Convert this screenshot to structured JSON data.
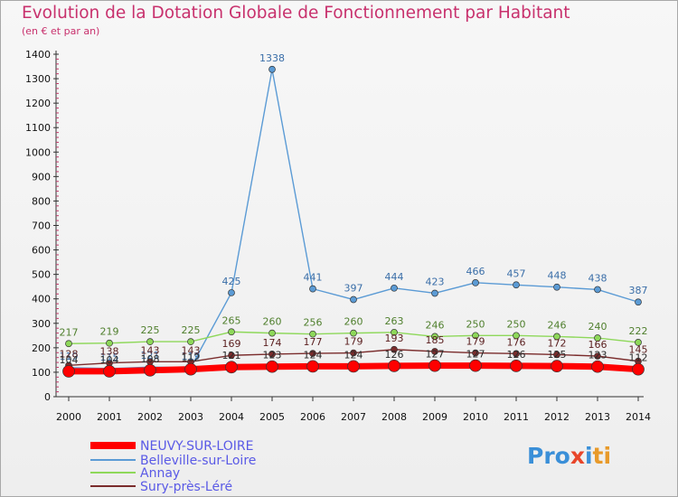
{
  "chart_data": {
    "type": "line",
    "title": "Evolution de la Dotation Globale de Fonctionnement par Habitant",
    "subtitle": "(en € et par an)",
    "ylim": [
      0,
      1400
    ],
    "yticks": [
      0,
      100,
      200,
      300,
      400,
      500,
      600,
      700,
      800,
      900,
      1000,
      1100,
      1200,
      1300,
      1400
    ],
    "x": [
      "2000",
      "2001",
      "2002",
      "2003",
      "2004",
      "2005",
      "2006",
      "2007",
      "2008",
      "2009",
      "2010",
      "2011",
      "2012",
      "2013",
      "2014"
    ],
    "grid": false,
    "legend_position": "bottom-left",
    "series": [
      {
        "name": "NEUVY-SUR-LOIRE",
        "color": "#ff0000",
        "values": [
          104,
          104,
          108,
          112,
          121,
          123,
          124,
          124,
          126,
          127,
          127,
          126,
          125,
          123,
          112
        ]
      },
      {
        "name": "Belleville-sur-Loire",
        "color": "#5b9bd5",
        "values": [
          119,
          115,
          121,
          119,
          425,
          1338,
          441,
          397,
          444,
          423,
          466,
          457,
          448,
          438,
          387
        ]
      },
      {
        "name": "Annay",
        "color": "#8ed85a",
        "values": [
          217,
          219,
          225,
          225,
          265,
          260,
          256,
          260,
          263,
          246,
          250,
          250,
          246,
          240,
          222
        ]
      },
      {
        "name": "Sury-près-Léré",
        "color": "#7a2c2c",
        "values": [
          128,
          138,
          143,
          143,
          169,
          174,
          177,
          179,
          193,
          185,
          179,
          176,
          172,
          166,
          145
        ]
      }
    ]
  },
  "logo": {
    "part1": "Pro",
    "part2": "x",
    "part3": "i",
    "part4": "ti"
  }
}
